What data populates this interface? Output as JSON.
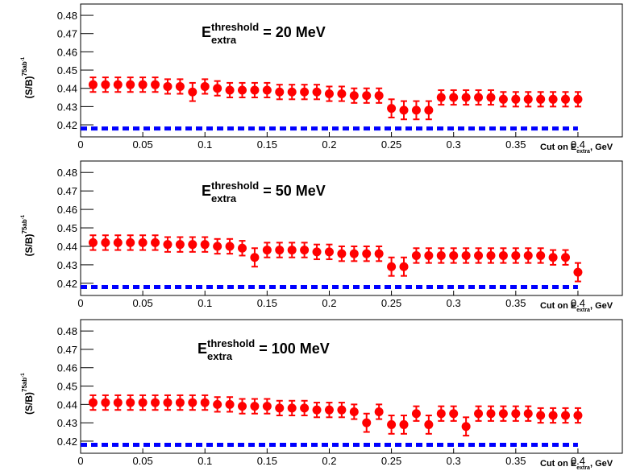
{
  "chart_data": [
    {
      "type": "scatter",
      "title_parts": [
        "E",
        "threshold",
        "extra",
        "= 20 MeV"
      ],
      "ylabel_parts": [
        "(S/B)",
        "75ab",
        "-1"
      ],
      "xlabel_parts": [
        "Cut on E",
        "extra",
        ", GeV"
      ],
      "xlim": [
        0,
        0.4357
      ],
      "ylim": [
        0.4134,
        0.4862
      ],
      "xticks": [
        0,
        0.05,
        0.1,
        0.15,
        0.2,
        0.25,
        0.3,
        0.35,
        0.4
      ],
      "yticks": [
        0.42,
        0.43,
        0.44,
        0.45,
        0.46,
        0.47,
        0.48
      ],
      "series": [
        {
          "type": "scatter",
          "color": "#ff0000",
          "x": [
            0.01,
            0.02,
            0.03,
            0.04,
            0.05,
            0.06,
            0.07,
            0.08,
            0.09,
            0.1,
            0.11,
            0.12,
            0.13,
            0.14,
            0.15,
            0.16,
            0.17,
            0.18,
            0.19,
            0.2,
            0.21,
            0.22,
            0.23,
            0.24,
            0.25,
            0.26,
            0.27,
            0.28,
            0.29,
            0.3,
            0.31,
            0.32,
            0.33,
            0.34,
            0.35,
            0.36,
            0.37,
            0.38,
            0.39,
            0.4
          ],
          "values": [
            0.442,
            0.442,
            0.442,
            0.442,
            0.442,
            0.442,
            0.441,
            0.441,
            0.438,
            0.441,
            0.44,
            0.439,
            0.439,
            0.439,
            0.439,
            0.438,
            0.438,
            0.438,
            0.438,
            0.437,
            0.437,
            0.436,
            0.436,
            0.436,
            0.429,
            0.428,
            0.428,
            0.428,
            0.435,
            0.435,
            0.435,
            0.435,
            0.435,
            0.434,
            0.434,
            0.434,
            0.434,
            0.434,
            0.434,
            0.434
          ],
          "errors": [
            0.004,
            0.004,
            0.004,
            0.004,
            0.004,
            0.004,
            0.004,
            0.004,
            0.005,
            0.004,
            0.004,
            0.004,
            0.004,
            0.004,
            0.004,
            0.004,
            0.004,
            0.004,
            0.004,
            0.004,
            0.004,
            0.004,
            0.004,
            0.004,
            0.005,
            0.005,
            0.005,
            0.005,
            0.004,
            0.004,
            0.004,
            0.004,
            0.004,
            0.004,
            0.004,
            0.004,
            0.004,
            0.004,
            0.004,
            0.004
          ]
        },
        {
          "type": "line",
          "color": "#0000ff",
          "dashed": true,
          "x": [
            0,
            0.4
          ],
          "values": [
            0.418,
            0.418
          ]
        }
      ]
    },
    {
      "type": "scatter",
      "title_parts": [
        "E",
        "threshold",
        "extra",
        "= 50 MeV"
      ],
      "ylabel_parts": [
        "(S/B)",
        "75ab",
        "-1"
      ],
      "xlabel_parts": [
        "Cut on E",
        "extra",
        ", GeV"
      ],
      "xlim": [
        0,
        0.4357
      ],
      "ylim": [
        0.4134,
        0.4862
      ],
      "xticks": [
        0,
        0.05,
        0.1,
        0.15,
        0.2,
        0.25,
        0.3,
        0.35,
        0.4
      ],
      "yticks": [
        0.42,
        0.43,
        0.44,
        0.45,
        0.46,
        0.47,
        0.48
      ],
      "series": [
        {
          "type": "scatter",
          "color": "#ff0000",
          "x": [
            0.01,
            0.02,
            0.03,
            0.04,
            0.05,
            0.06,
            0.07,
            0.08,
            0.09,
            0.1,
            0.11,
            0.12,
            0.13,
            0.14,
            0.15,
            0.16,
            0.17,
            0.18,
            0.19,
            0.2,
            0.21,
            0.22,
            0.23,
            0.24,
            0.25,
            0.26,
            0.27,
            0.28,
            0.29,
            0.3,
            0.31,
            0.32,
            0.33,
            0.34,
            0.35,
            0.36,
            0.37,
            0.38,
            0.39,
            0.4
          ],
          "values": [
            0.442,
            0.442,
            0.442,
            0.442,
            0.442,
            0.442,
            0.441,
            0.441,
            0.441,
            0.441,
            0.44,
            0.44,
            0.439,
            0.434,
            0.438,
            0.438,
            0.438,
            0.438,
            0.437,
            0.437,
            0.436,
            0.436,
            0.436,
            0.436,
            0.429,
            0.429,
            0.435,
            0.435,
            0.435,
            0.435,
            0.435,
            0.435,
            0.435,
            0.435,
            0.435,
            0.435,
            0.435,
            0.434,
            0.434,
            0.426
          ],
          "errors": [
            0.004,
            0.004,
            0.004,
            0.004,
            0.004,
            0.004,
            0.004,
            0.004,
            0.004,
            0.004,
            0.004,
            0.004,
            0.004,
            0.005,
            0.004,
            0.004,
            0.004,
            0.004,
            0.004,
            0.004,
            0.004,
            0.004,
            0.004,
            0.004,
            0.005,
            0.005,
            0.004,
            0.004,
            0.004,
            0.004,
            0.004,
            0.004,
            0.004,
            0.004,
            0.004,
            0.004,
            0.004,
            0.004,
            0.004,
            0.005
          ]
        },
        {
          "type": "line",
          "color": "#0000ff",
          "dashed": true,
          "x": [
            0,
            0.4
          ],
          "values": [
            0.418,
            0.418
          ]
        }
      ]
    },
    {
      "type": "scatter",
      "title_parts": [
        "E",
        "threshold",
        "extra",
        "= 100 MeV"
      ],
      "ylabel_parts": [
        "(S/B)",
        "75ab",
        "-1"
      ],
      "xlabel_parts": [
        "Cut on E",
        "extra",
        ", GeV"
      ],
      "xlim": [
        0,
        0.4357
      ],
      "ylim": [
        0.4134,
        0.4862
      ],
      "xticks": [
        0,
        0.05,
        0.1,
        0.15,
        0.2,
        0.25,
        0.3,
        0.35,
        0.4
      ],
      "yticks": [
        0.42,
        0.43,
        0.44,
        0.45,
        0.46,
        0.47,
        0.48
      ],
      "series": [
        {
          "type": "scatter",
          "color": "#ff0000",
          "x": [
            0.01,
            0.02,
            0.03,
            0.04,
            0.05,
            0.06,
            0.07,
            0.08,
            0.09,
            0.1,
            0.11,
            0.12,
            0.13,
            0.14,
            0.15,
            0.16,
            0.17,
            0.18,
            0.19,
            0.2,
            0.21,
            0.22,
            0.23,
            0.24,
            0.25,
            0.26,
            0.27,
            0.28,
            0.29,
            0.3,
            0.31,
            0.32,
            0.33,
            0.34,
            0.35,
            0.36,
            0.37,
            0.38,
            0.39,
            0.4
          ],
          "values": [
            0.441,
            0.441,
            0.441,
            0.441,
            0.441,
            0.441,
            0.441,
            0.441,
            0.441,
            0.441,
            0.44,
            0.44,
            0.439,
            0.439,
            0.439,
            0.438,
            0.438,
            0.438,
            0.437,
            0.437,
            0.437,
            0.436,
            0.43,
            0.436,
            0.429,
            0.429,
            0.435,
            0.429,
            0.435,
            0.435,
            0.428,
            0.435,
            0.435,
            0.435,
            0.435,
            0.435,
            0.434,
            0.434,
            0.434,
            0.434
          ],
          "errors": [
            0.004,
            0.004,
            0.004,
            0.004,
            0.004,
            0.004,
            0.004,
            0.004,
            0.004,
            0.004,
            0.004,
            0.004,
            0.004,
            0.004,
            0.004,
            0.004,
            0.004,
            0.004,
            0.004,
            0.004,
            0.004,
            0.004,
            0.005,
            0.004,
            0.005,
            0.005,
            0.004,
            0.005,
            0.004,
            0.004,
            0.005,
            0.004,
            0.004,
            0.004,
            0.004,
            0.004,
            0.004,
            0.004,
            0.004,
            0.004
          ]
        },
        {
          "type": "line",
          "color": "#0000ff",
          "dashed": true,
          "x": [
            0,
            0.4
          ],
          "values": [
            0.418,
            0.418
          ]
        }
      ]
    }
  ]
}
